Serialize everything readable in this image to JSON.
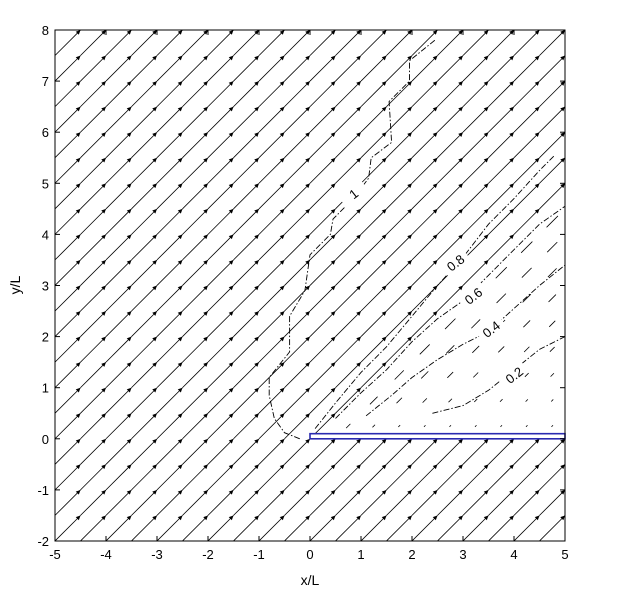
{
  "chart_data": {
    "type": "vector-field-with-contours",
    "title": "",
    "xlabel": "x/L",
    "ylabel": "y/L",
    "xlim": [
      -5,
      5
    ],
    "ylim": [
      -2,
      8
    ],
    "xticks": [
      "-5",
      "-4",
      "-3",
      "-2",
      "-1",
      "0",
      "1",
      "2",
      "3",
      "4",
      "5"
    ],
    "yticks": [
      "-2",
      "-1",
      "0",
      "1",
      "2",
      "3",
      "4",
      "5",
      "6",
      "7",
      "8"
    ],
    "grid": false,
    "vector_field": {
      "x_start": -4.75,
      "x_step": 0.5,
      "x_count": 20,
      "y_start": -1.75,
      "y_step": 0.5,
      "y_count": 20,
      "direction_deg": 45,
      "shadow_boundary_x0": 0.0,
      "shadow_boundary_y0": 0.0
    },
    "plate": {
      "x": [
        0,
        5
      ],
      "y": 0,
      "thickness": 0.1,
      "color": "#2a2ab0"
    },
    "contours": [
      {
        "label": "1",
        "label_at": [
          0.85,
          4.8
        ],
        "points": [
          [
            -0.2,
            0.0
          ],
          [
            -0.5,
            0.12
          ],
          [
            -0.7,
            0.4
          ],
          [
            -0.8,
            0.85
          ],
          [
            -0.8,
            1.2
          ],
          [
            -0.4,
            1.7
          ],
          [
            -0.4,
            2.4
          ],
          [
            -0.1,
            2.9
          ],
          [
            0.0,
            3.6
          ],
          [
            0.4,
            4.0
          ],
          [
            0.45,
            4.3
          ],
          [
            0.85,
            4.7
          ],
          [
            1.15,
            5.1
          ],
          [
            1.2,
            5.5
          ],
          [
            1.6,
            5.8
          ],
          [
            1.55,
            6.6
          ],
          [
            1.95,
            7.0
          ],
          [
            1.95,
            7.4
          ],
          [
            2.45,
            7.8
          ]
        ]
      },
      {
        "label": "0.8",
        "label_at": [
          2.85,
          3.45
        ],
        "points": [
          [
            0.1,
            0.2
          ],
          [
            0.5,
            0.7
          ],
          [
            1.0,
            1.3
          ],
          [
            1.5,
            1.8
          ],
          [
            2.0,
            2.4
          ],
          [
            2.5,
            3.0
          ],
          [
            3.0,
            3.55
          ],
          [
            3.5,
            4.2
          ],
          [
            4.0,
            4.7
          ],
          [
            4.5,
            5.25
          ],
          [
            4.8,
            5.55
          ]
        ]
      },
      {
        "label": "0.6",
        "label_at": [
          3.2,
          2.8
        ],
        "points": [
          [
            0.5,
            0.4
          ],
          [
            1.0,
            0.9
          ],
          [
            1.5,
            1.35
          ],
          [
            2.0,
            1.9
          ],
          [
            2.5,
            2.35
          ],
          [
            3.0,
            2.7
          ],
          [
            3.5,
            3.2
          ],
          [
            4.0,
            3.7
          ],
          [
            4.5,
            4.2
          ],
          [
            5.0,
            4.55
          ]
        ]
      },
      {
        "label": "0.4",
        "label_at": [
          3.55,
          2.15
        ],
        "points": [
          [
            1.1,
            0.45
          ],
          [
            1.6,
            0.85
          ],
          [
            2.0,
            1.2
          ],
          [
            2.5,
            1.55
          ],
          [
            3.0,
            1.85
          ],
          [
            3.5,
            2.1
          ],
          [
            4.0,
            2.55
          ],
          [
            4.5,
            3.0
          ],
          [
            5.0,
            3.4
          ]
        ]
      },
      {
        "label": "0.2",
        "label_at": [
          4.0,
          1.25
        ],
        "points": [
          [
            2.4,
            0.5
          ],
          [
            3.0,
            0.65
          ],
          [
            3.5,
            0.95
          ],
          [
            4.0,
            1.35
          ],
          [
            4.5,
            1.75
          ],
          [
            5.0,
            2.0
          ]
        ]
      }
    ]
  }
}
